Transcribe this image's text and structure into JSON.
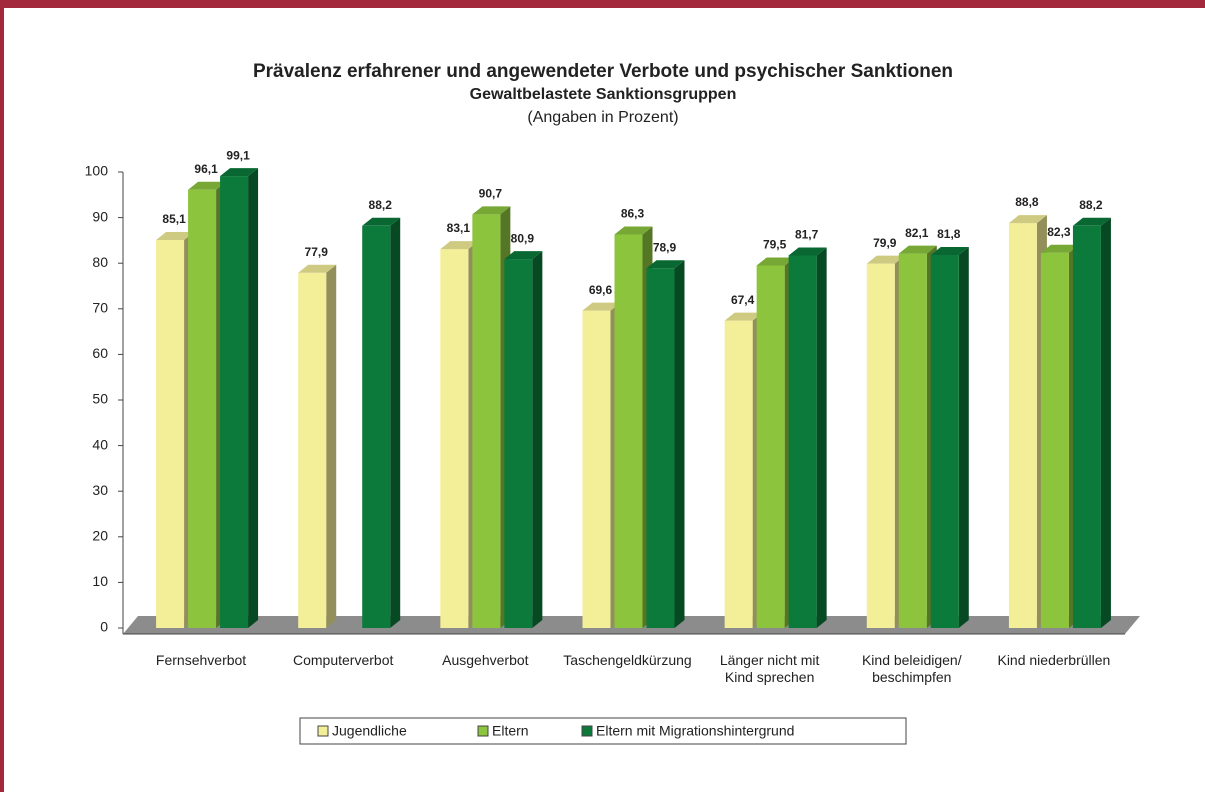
{
  "chart_data": {
    "type": "bar3d",
    "title": "Prävalenz erfahrener und angewendeter Verbote und psychischer Sanktionen",
    "subtitle": "Gewaltbelastete Sanktionsgruppen",
    "note": "(Angaben in Prozent)",
    "categories": [
      "Fernsehverbot",
      "Computerverbot",
      "Ausgehverbot",
      "Taschengeldkürzung",
      "Länger nicht mit\nKind sprechen",
      "Kind beleidigen/\nbeschimpfen",
      "Kind niederbrüllen"
    ],
    "series": [
      {
        "name": "Jugendliche",
        "color": "#f3ee98",
        "values": [
          85.1,
          77.9,
          83.1,
          69.6,
          67.4,
          79.9,
          88.8
        ],
        "value_labels": [
          "85,1",
          "77,9",
          "83,1",
          "69,6",
          "67,4",
          "79,9",
          "88,8"
        ]
      },
      {
        "name": "Eltern",
        "color": "#8cc43e",
        "values": [
          96.1,
          null,
          90.7,
          86.3,
          79.5,
          82.1,
          82.3
        ],
        "value_labels": [
          "96,1",
          null,
          "90,7",
          "86,3",
          "79,5",
          "82,1",
          "82,3"
        ]
      },
      {
        "name": "Eltern mit Migrationshintergrund",
        "color": "#0b7a3b",
        "values": [
          99.1,
          88.2,
          80.9,
          78.9,
          81.7,
          81.8,
          88.2
        ],
        "value_labels": [
          "99,1",
          "88,2",
          "80,9",
          "78,9",
          "81,7",
          "81,8",
          "88,2"
        ]
      }
    ],
    "ylim": [
      0,
      100
    ],
    "yticks": [
      0,
      10,
      20,
      30,
      40,
      50,
      60,
      70,
      80,
      90,
      100
    ],
    "legend": "bottom"
  }
}
